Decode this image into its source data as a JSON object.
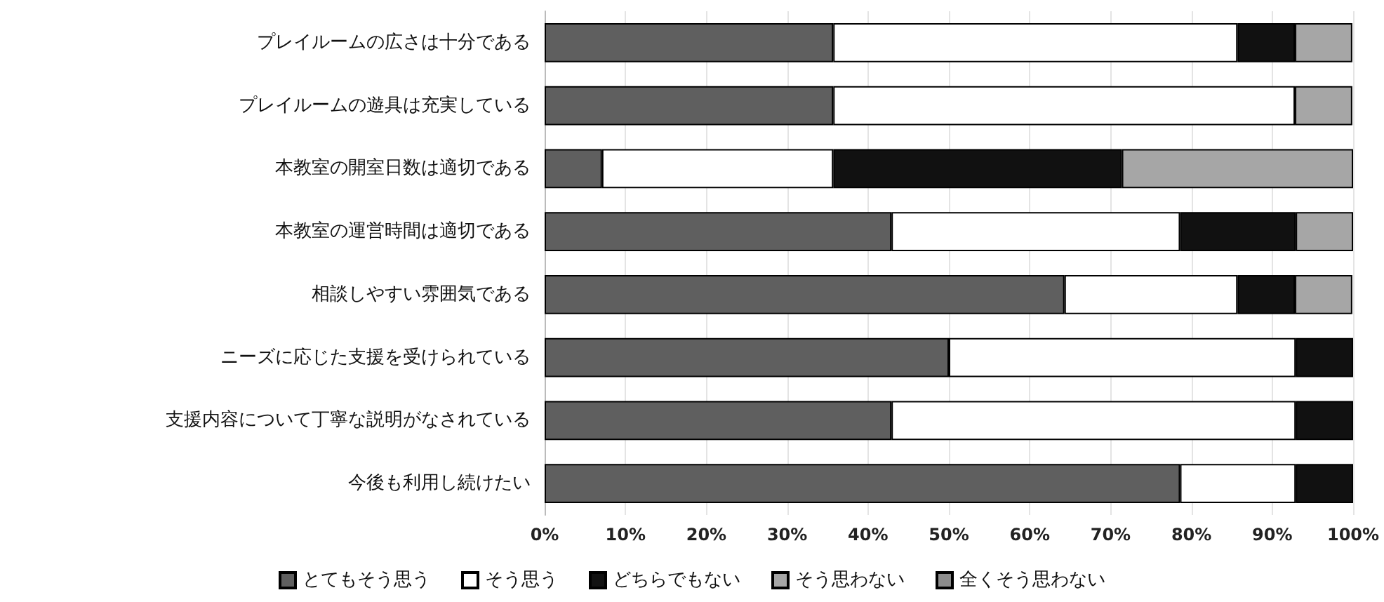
{
  "chart_data": {
    "type": "bar",
    "orientation": "horizontal",
    "stacked": true,
    "categories": [
      "プレイルームの広さは十分である",
      "プレイルームの遊具は充実している",
      "本教室の開室日数は適切である",
      "本教室の運営時間は適切である",
      "相談しやすい雰囲気である",
      "ニーズに応じた支援を受けられている",
      "支援内容について丁寧な説明がなされている",
      "今後も利用し続けたい"
    ],
    "series": [
      {
        "name": "とてもそう思う",
        "color": "#5f5f5f",
        "values": [
          35.7,
          35.7,
          7.1,
          42.9,
          64.3,
          50,
          42.9,
          78.6
        ]
      },
      {
        "name": "そう思う",
        "color": "#ffffff",
        "values": [
          50,
          57.1,
          28.6,
          35.7,
          21.4,
          42.9,
          50,
          14.3
        ]
      },
      {
        "name": "どちらでもない",
        "color": "#111111",
        "values": [
          7.1,
          null,
          35.7,
          14.3,
          7.1,
          7.1,
          7.1,
          7.1
        ]
      },
      {
        "name": "そう思わない",
        "color": "#a6a6a6",
        "values": [
          7.1,
          7.1,
          28.6,
          7.1,
          7.1,
          null,
          null,
          null
        ]
      },
      {
        "name": "全くそう思わない",
        "color": "#8c8c8c",
        "values": [
          null,
          null,
          null,
          null,
          null,
          null,
          null,
          null
        ]
      }
    ],
    "xlim": [
      0,
      100
    ],
    "xticks": [
      {
        "value": 0,
        "label": "0%"
      },
      {
        "value": 10,
        "label": "10%"
      },
      {
        "value": 20,
        "label": "20%"
      },
      {
        "value": 30,
        "label": "30%"
      },
      {
        "value": 40,
        "label": "40%"
      },
      {
        "value": 50,
        "label": "50%"
      },
      {
        "value": 60,
        "label": "60%"
      },
      {
        "value": 70,
        "label": "70%"
      },
      {
        "value": 80,
        "label": "80%"
      },
      {
        "value": 90,
        "label": "90%"
      },
      {
        "value": 100,
        "label": "100%"
      }
    ],
    "grid": "x",
    "legend": "bottom"
  }
}
